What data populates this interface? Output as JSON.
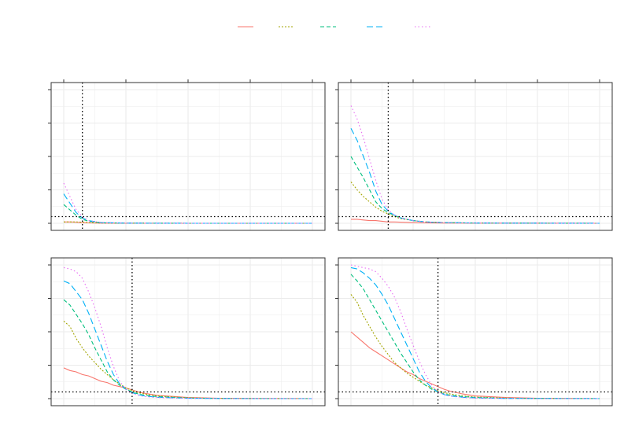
{
  "colors": {
    "series": [
      "#F8766D",
      "#A3A500",
      "#00BF7D",
      "#00B0F6",
      "#E76BF3"
    ],
    "grid": "#ebebeb",
    "panel_border": "#333333",
    "reference_line": "#000000"
  },
  "legend": {
    "position": "top-center",
    "dash_styles": [
      "solid",
      "dotted",
      "dashed",
      "longdash",
      "dotted-sparse"
    ]
  },
  "chart_data": [
    {
      "type": "line",
      "panel": "top-left",
      "xlim": [
        0,
        400
      ],
      "ylim": [
        0,
        1
      ],
      "grid": true,
      "reference_lines": {
        "vline_x": 30,
        "hline_y": 0.05
      },
      "x": [
        0,
        10,
        20,
        30,
        40,
        60,
        100,
        200,
        400
      ],
      "series": [
        {
          "values": [
            0.01,
            0.01,
            0.008,
            0.005,
            0.003,
            0.001,
            0,
            0,
            0
          ]
        },
        {
          "values": [
            0.01,
            0.01,
            0.01,
            0.008,
            0.005,
            0.002,
            0.001,
            0,
            0
          ]
        },
        {
          "values": [
            0.14,
            0.1,
            0.06,
            0.03,
            0.015,
            0.004,
            0.001,
            0,
            0
          ]
        },
        {
          "values": [
            0.22,
            0.15,
            0.08,
            0.04,
            0.02,
            0.005,
            0.001,
            0,
            0
          ]
        },
        {
          "values": [
            0.3,
            0.2,
            0.1,
            0.05,
            0.02,
            0.006,
            0.001,
            0,
            0
          ]
        }
      ]
    },
    {
      "type": "line",
      "panel": "top-right",
      "xlim": [
        0,
        400
      ],
      "ylim": [
        0,
        1
      ],
      "grid": true,
      "reference_lines": {
        "vline_x": 60,
        "hline_y": 0.05
      },
      "x": [
        0,
        10,
        20,
        30,
        40,
        50,
        60,
        70,
        80,
        100,
        120,
        150,
        200,
        400
      ],
      "series": [
        {
          "values": [
            0.03,
            0.03,
            0.025,
            0.02,
            0.02,
            0.015,
            0.01,
            0.01,
            0.008,
            0.005,
            0.003,
            0.002,
            0.001,
            0
          ]
        },
        {
          "values": [
            0.31,
            0.25,
            0.2,
            0.16,
            0.12,
            0.09,
            0.07,
            0.05,
            0.035,
            0.02,
            0.01,
            0.005,
            0.002,
            0
          ]
        },
        {
          "values": [
            0.5,
            0.42,
            0.34,
            0.25,
            0.16,
            0.11,
            0.08,
            0.06,
            0.04,
            0.02,
            0.01,
            0.005,
            0.002,
            0
          ]
        },
        {
          "values": [
            0.71,
            0.62,
            0.5,
            0.38,
            0.24,
            0.14,
            0.09,
            0.06,
            0.04,
            0.02,
            0.01,
            0.005,
            0.002,
            0
          ]
        },
        {
          "values": [
            0.88,
            0.78,
            0.64,
            0.48,
            0.32,
            0.18,
            0.1,
            0.06,
            0.04,
            0.02,
            0.01,
            0.005,
            0.002,
            0
          ]
        }
      ]
    },
    {
      "type": "line",
      "panel": "bottom-left",
      "xlim": [
        0,
        400
      ],
      "ylim": [
        0,
        1
      ],
      "grid": true,
      "reference_lines": {
        "vline_x": 110,
        "hline_y": 0.05
      },
      "x": [
        0,
        10,
        20,
        30,
        40,
        50,
        60,
        70,
        80,
        90,
        100,
        110,
        120,
        130,
        150,
        200,
        250,
        300,
        400
      ],
      "series": [
        {
          "values": [
            0.23,
            0.21,
            0.2,
            0.18,
            0.17,
            0.15,
            0.13,
            0.12,
            0.1,
            0.09,
            0.08,
            0.065,
            0.05,
            0.04,
            0.025,
            0.008,
            0.003,
            0.001,
            0
          ]
        },
        {
          "values": [
            0.58,
            0.54,
            0.45,
            0.38,
            0.32,
            0.27,
            0.22,
            0.18,
            0.14,
            0.11,
            0.08,
            0.06,
            0.045,
            0.035,
            0.02,
            0.006,
            0.002,
            0.001,
            0
          ]
        },
        {
          "values": [
            0.74,
            0.7,
            0.63,
            0.56,
            0.48,
            0.38,
            0.29,
            0.2,
            0.14,
            0.1,
            0.07,
            0.05,
            0.035,
            0.025,
            0.015,
            0.004,
            0.001,
            0,
            0
          ]
        },
        {
          "values": [
            0.88,
            0.86,
            0.8,
            0.74,
            0.64,
            0.52,
            0.4,
            0.28,
            0.18,
            0.11,
            0.07,
            0.045,
            0.03,
            0.02,
            0.01,
            0.003,
            0.001,
            0,
            0
          ]
        },
        {
          "values": [
            0.98,
            0.97,
            0.95,
            0.9,
            0.8,
            0.68,
            0.54,
            0.38,
            0.24,
            0.13,
            0.07,
            0.04,
            0.025,
            0.015,
            0.008,
            0.002,
            0.001,
            0,
            0
          ]
        }
      ]
    },
    {
      "type": "line",
      "panel": "bottom-right",
      "xlim": [
        0,
        400
      ],
      "ylim": [
        0,
        1
      ],
      "grid": true,
      "reference_lines": {
        "vline_x": 140,
        "hline_y": 0.05
      },
      "x": [
        0,
        10,
        20,
        30,
        40,
        50,
        60,
        70,
        80,
        90,
        100,
        110,
        120,
        130,
        140,
        150,
        160,
        180,
        200,
        250,
        300,
        400
      ],
      "series": [
        {
          "values": [
            0.5,
            0.46,
            0.42,
            0.38,
            0.35,
            0.32,
            0.29,
            0.26,
            0.23,
            0.2,
            0.18,
            0.15,
            0.13,
            0.11,
            0.09,
            0.07,
            0.055,
            0.035,
            0.02,
            0.008,
            0.003,
            0
          ]
        },
        {
          "values": [
            0.78,
            0.72,
            0.62,
            0.54,
            0.46,
            0.39,
            0.33,
            0.27,
            0.23,
            0.19,
            0.16,
            0.13,
            0.1,
            0.08,
            0.06,
            0.045,
            0.035,
            0.02,
            0.012,
            0.004,
            0.001,
            0
          ]
        },
        {
          "values": [
            0.93,
            0.88,
            0.82,
            0.74,
            0.66,
            0.58,
            0.5,
            0.42,
            0.34,
            0.27,
            0.2,
            0.14,
            0.1,
            0.07,
            0.05,
            0.035,
            0.025,
            0.015,
            0.008,
            0.002,
            0.001,
            0
          ]
        },
        {
          "values": [
            0.98,
            0.97,
            0.94,
            0.9,
            0.85,
            0.78,
            0.7,
            0.6,
            0.5,
            0.4,
            0.3,
            0.2,
            0.13,
            0.08,
            0.05,
            0.03,
            0.02,
            0.01,
            0.005,
            0.002,
            0.001,
            0
          ]
        },
        {
          "values": [
            1.0,
            0.99,
            0.98,
            0.97,
            0.95,
            0.9,
            0.84,
            0.76,
            0.65,
            0.52,
            0.4,
            0.28,
            0.18,
            0.1,
            0.05,
            0.03,
            0.018,
            0.008,
            0.004,
            0.001,
            0,
            0
          ]
        }
      ]
    }
  ]
}
